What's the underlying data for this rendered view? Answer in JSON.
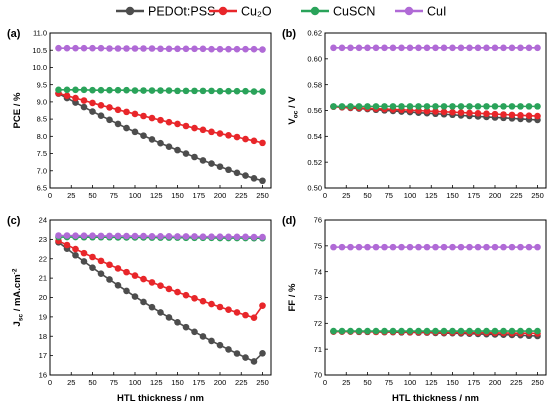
{
  "legend": [
    {
      "label": "PEDOt:PSS",
      "series": "pedot"
    },
    {
      "label": "Cu₂O",
      "series": "cu2o"
    },
    {
      "label": "CuSCN",
      "series": "cuscn"
    },
    {
      "label": "CuI",
      "series": "cui"
    }
  ],
  "colors": {
    "pedot": "#4d4d4d",
    "cu2o": "#e8262a",
    "cuscn": "#2aa35a",
    "cui": "#b06ad6"
  },
  "chart_data": [
    {
      "type": "line",
      "panel_label": "(a)",
      "ylabel": "PCE / %",
      "xlabel": "",
      "xlim": [
        0,
        260
      ],
      "ylim": [
        6.5,
        11.0
      ],
      "xticks": [
        "0",
        "25",
        "50",
        "75",
        "100",
        "125",
        "150",
        "175",
        "200",
        "225",
        "250"
      ],
      "yticks": [
        "6.5",
        "7.0",
        "7.5",
        "8.0",
        "8.5",
        "9.0",
        "9.5",
        "10.0",
        "10.5",
        "11.0"
      ],
      "x": [
        10,
        20,
        30,
        40,
        50,
        60,
        70,
        80,
        90,
        100,
        110,
        120,
        130,
        140,
        150,
        160,
        170,
        180,
        190,
        200,
        210,
        220,
        230,
        240,
        250
      ],
      "series": [
        {
          "key": "pedot",
          "values": [
            9.24,
            9.11,
            8.98,
            8.85,
            8.72,
            8.6,
            8.48,
            8.36,
            8.24,
            8.13,
            8.02,
            7.91,
            7.8,
            7.7,
            7.6,
            7.5,
            7.4,
            7.3,
            7.21,
            7.12,
            7.03,
            6.94,
            6.86,
            6.78,
            6.71
          ]
        },
        {
          "key": "cu2o",
          "values": [
            9.25,
            9.18,
            9.11,
            9.04,
            8.97,
            8.9,
            8.84,
            8.77,
            8.71,
            8.65,
            8.59,
            8.53,
            8.47,
            8.41,
            8.36,
            8.3,
            8.24,
            8.19,
            8.13,
            8.08,
            8.03,
            7.98,
            7.92,
            7.87,
            7.81
          ]
        },
        {
          "key": "cuscn",
          "values": [
            9.35,
            9.35,
            9.35,
            9.35,
            9.34,
            9.34,
            9.34,
            9.34,
            9.34,
            9.33,
            9.33,
            9.33,
            9.33,
            9.33,
            9.32,
            9.32,
            9.32,
            9.32,
            9.32,
            9.31,
            9.31,
            9.31,
            9.31,
            9.3,
            9.3
          ]
        },
        {
          "key": "cui",
          "values": [
            10.56,
            10.56,
            10.56,
            10.56,
            10.56,
            10.56,
            10.55,
            10.55,
            10.55,
            10.55,
            10.55,
            10.55,
            10.54,
            10.54,
            10.54,
            10.54,
            10.54,
            10.54,
            10.53,
            10.53,
            10.53,
            10.53,
            10.53,
            10.53,
            10.52
          ]
        }
      ]
    },
    {
      "type": "line",
      "panel_label": "(b)",
      "ylabel_main": "V",
      "ylabel_sub": "oc",
      "ylabel_rest": " / V",
      "xlabel": "",
      "xlim": [
        0,
        260
      ],
      "ylim": [
        0.5,
        0.62
      ],
      "xticks": [
        "0",
        "25",
        "50",
        "75",
        "100",
        "125",
        "150",
        "175",
        "200",
        "225",
        "250"
      ],
      "yticks": [
        "0.50",
        "0.52",
        "0.54",
        "0.56",
        "0.58",
        "0.60",
        "0.62"
      ],
      "x": [
        10,
        20,
        30,
        40,
        50,
        60,
        70,
        80,
        90,
        100,
        110,
        120,
        130,
        140,
        150,
        160,
        170,
        180,
        190,
        200,
        210,
        220,
        230,
        240,
        250
      ],
      "series": [
        {
          "key": "pedot",
          "values": [
            0.563,
            0.5625,
            0.562,
            0.5615,
            0.5611,
            0.5606,
            0.5601,
            0.5597,
            0.5592,
            0.5588,
            0.5583,
            0.5579,
            0.5575,
            0.5571,
            0.5567,
            0.5562,
            0.5558,
            0.5554,
            0.555,
            0.5546,
            0.5543,
            0.5539,
            0.5535,
            0.5531,
            0.5527
          ]
        },
        {
          "key": "cu2o",
          "values": [
            0.563,
            0.5626,
            0.5623,
            0.562,
            0.5617,
            0.5614,
            0.5611,
            0.5608,
            0.5605,
            0.5602,
            0.5599,
            0.5596,
            0.5593,
            0.559,
            0.5587,
            0.5584,
            0.5581,
            0.5578,
            0.5575,
            0.5572,
            0.5569,
            0.5566,
            0.5563,
            0.556,
            0.5557
          ]
        },
        {
          "key": "cuscn",
          "values": [
            0.5632,
            0.5632,
            0.5632,
            0.5632,
            0.5632,
            0.5632,
            0.5632,
            0.5632,
            0.5632,
            0.5632,
            0.5632,
            0.5632,
            0.5632,
            0.5632,
            0.5632,
            0.5632,
            0.5632,
            0.5632,
            0.5632,
            0.5632,
            0.5632,
            0.5632,
            0.5632,
            0.5632,
            0.5632
          ]
        },
        {
          "key": "cui",
          "values": [
            0.6085,
            0.6085,
            0.6085,
            0.6085,
            0.6085,
            0.6085,
            0.6085,
            0.6085,
            0.6085,
            0.6085,
            0.6085,
            0.6085,
            0.6085,
            0.6085,
            0.6085,
            0.6085,
            0.6085,
            0.6085,
            0.6085,
            0.6085,
            0.6085,
            0.6085,
            0.6085,
            0.6085,
            0.6085
          ]
        }
      ]
    },
    {
      "type": "line",
      "panel_label": "(c)",
      "ylabel_main": "J",
      "ylabel_sub": "sc",
      "ylabel_rest": " / mA.cm",
      "ylabel_sup": "-2",
      "xlabel": "HTL thickness / nm",
      "xlim": [
        0,
        260
      ],
      "ylim": [
        16,
        24
      ],
      "xticks": [
        "0",
        "25",
        "50",
        "75",
        "100",
        "125",
        "150",
        "175",
        "200",
        "225",
        "250"
      ],
      "yticks": [
        "16",
        "17",
        "18",
        "19",
        "20",
        "21",
        "22",
        "23",
        "24"
      ],
      "x": [
        10,
        20,
        30,
        40,
        50,
        60,
        70,
        80,
        90,
        100,
        110,
        120,
        130,
        140,
        150,
        160,
        170,
        180,
        190,
        200,
        210,
        220,
        230,
        240,
        250
      ],
      "series": [
        {
          "key": "pedot",
          "values": [
            22.85,
            22.52,
            22.18,
            21.86,
            21.54,
            21.23,
            20.93,
            20.63,
            20.34,
            20.05,
            19.77,
            19.5,
            19.23,
            18.97,
            18.72,
            18.47,
            18.23,
            17.99,
            17.76,
            17.54,
            17.32,
            17.11,
            16.9,
            16.7,
            17.12
          ]
        },
        {
          "key": "cu2o",
          "values": [
            22.92,
            22.71,
            22.5,
            22.29,
            22.09,
            21.89,
            21.69,
            21.5,
            21.31,
            21.13,
            20.95,
            20.78,
            20.61,
            20.44,
            20.28,
            20.12,
            19.96,
            19.81,
            19.66,
            19.51,
            19.37,
            19.23,
            19.09,
            18.96,
            19.58
          ]
        },
        {
          "key": "cuscn",
          "values": [
            23.12,
            23.12,
            23.12,
            23.11,
            23.11,
            23.11,
            23.11,
            23.1,
            23.1,
            23.1,
            23.1,
            23.09,
            23.09,
            23.09,
            23.09,
            23.08,
            23.08,
            23.08,
            23.08,
            23.07,
            23.07,
            23.07,
            23.07,
            23.06,
            23.06
          ]
        },
        {
          "key": "cui",
          "values": [
            23.2,
            23.2,
            23.19,
            23.19,
            23.19,
            23.18,
            23.18,
            23.18,
            23.17,
            23.17,
            23.17,
            23.16,
            23.16,
            23.16,
            23.15,
            23.15,
            23.15,
            23.14,
            23.14,
            23.14,
            23.13,
            23.13,
            23.13,
            23.12,
            23.12
          ]
        }
      ]
    },
    {
      "type": "line",
      "panel_label": "(d)",
      "ylabel": "FF / %",
      "xlabel": "HTL thickness / nm",
      "xlim": [
        0,
        260
      ],
      "ylim": [
        70,
        76
      ],
      "xticks": [
        "0",
        "25",
        "50",
        "75",
        "100",
        "125",
        "150",
        "175",
        "200",
        "225",
        "250"
      ],
      "yticks": [
        "70",
        "71",
        "72",
        "73",
        "74",
        "75",
        "76"
      ],
      "x": [
        10,
        20,
        30,
        40,
        50,
        60,
        70,
        80,
        90,
        100,
        110,
        120,
        130,
        140,
        150,
        160,
        170,
        180,
        190,
        200,
        210,
        220,
        230,
        240,
        250
      ],
      "series": [
        {
          "key": "pedot",
          "values": [
            71.68,
            71.68,
            71.68,
            71.67,
            71.67,
            71.67,
            71.66,
            71.66,
            71.65,
            71.65,
            71.64,
            71.64,
            71.63,
            71.62,
            71.62,
            71.61,
            71.6,
            71.59,
            71.58,
            71.57,
            71.56,
            71.55,
            71.54,
            71.52,
            71.51
          ]
        },
        {
          "key": "cu2o",
          "values": [
            71.68,
            71.68,
            71.68,
            71.68,
            71.68,
            71.67,
            71.67,
            71.67,
            71.67,
            71.66,
            71.66,
            71.66,
            71.66,
            71.65,
            71.65,
            71.65,
            71.64,
            71.64,
            71.64,
            71.63,
            71.63,
            71.62,
            71.62,
            71.62,
            71.61
          ]
        },
        {
          "key": "cuscn",
          "values": [
            71.7,
            71.7,
            71.7,
            71.7,
            71.7,
            71.7,
            71.7,
            71.7,
            71.7,
            71.7,
            71.7,
            71.7,
            71.7,
            71.7,
            71.7,
            71.7,
            71.7,
            71.7,
            71.7,
            71.7,
            71.7,
            71.7,
            71.7,
            71.7,
            71.7
          ]
        },
        {
          "key": "cui",
          "values": [
            74.95,
            74.95,
            74.95,
            74.95,
            74.95,
            74.95,
            74.95,
            74.95,
            74.95,
            74.95,
            74.95,
            74.95,
            74.95,
            74.95,
            74.95,
            74.95,
            74.95,
            74.95,
            74.95,
            74.95,
            74.95,
            74.95,
            74.95,
            74.95,
            74.95
          ]
        }
      ]
    }
  ]
}
